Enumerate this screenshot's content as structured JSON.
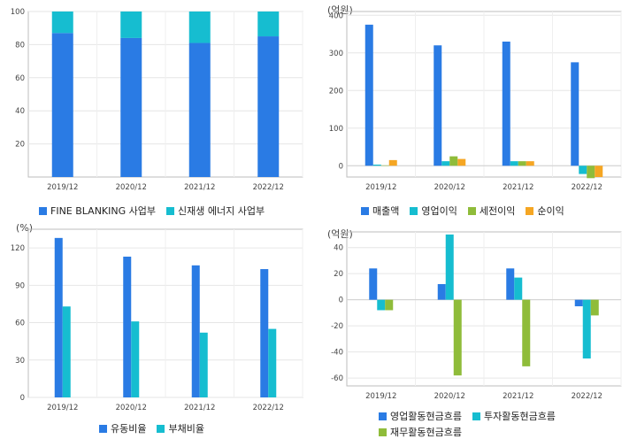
{
  "chart_data": [
    {
      "id": "c1",
      "type": "bar",
      "stacked": true,
      "unit_label": "",
      "categories": [
        "2019/12",
        "2020/12",
        "2021/12",
        "2022/12"
      ],
      "series": [
        {
          "name": "FINE BLANKING 사업부",
          "color": "#2a7be4",
          "values": [
            87,
            84,
            81,
            85
          ]
        },
        {
          "name": "신재생 에너지 사업부",
          "color": "#16bdd0",
          "values": [
            13,
            16,
            19,
            15
          ]
        }
      ],
      "ylim": [
        0,
        100
      ],
      "yticks": [
        20,
        40,
        60,
        80,
        100
      ],
      "grid": true,
      "legend": "bottom"
    },
    {
      "id": "c2",
      "type": "bar",
      "unit_label": "(억원)",
      "categories": [
        "2019/12",
        "2020/12",
        "2021/12",
        "2022/12"
      ],
      "series": [
        {
          "name": "매출액",
          "color": "#2a7be4",
          "values": [
            375,
            320,
            330,
            275
          ]
        },
        {
          "name": "영업이익",
          "color": "#16bdd0",
          "values": [
            3,
            12,
            12,
            -22
          ]
        },
        {
          "name": "세전이익",
          "color": "#8fbc3a",
          "values": [
            1,
            25,
            12,
            -33
          ]
        },
        {
          "name": "순이익",
          "color": "#f5a623",
          "values": [
            15,
            18,
            12,
            -30
          ]
        }
      ],
      "ylim": [
        -30,
        410
      ],
      "yticks": [
        0,
        100,
        200,
        300,
        400
      ],
      "grid": true,
      "legend": "bottom"
    },
    {
      "id": "c3",
      "type": "bar",
      "unit_label": "(%)",
      "categories": [
        "2019/12",
        "2020/12",
        "2021/12",
        "2022/12"
      ],
      "series": [
        {
          "name": "유동비율",
          "color": "#2a7be4",
          "values": [
            128,
            113,
            106,
            103
          ]
        },
        {
          "name": "부채비율",
          "color": "#16bdd0",
          "values": [
            73,
            61,
            52,
            55
          ]
        }
      ],
      "ylim": [
        0,
        135
      ],
      "yticks": [
        0,
        30,
        60,
        90,
        120
      ],
      "grid": true,
      "legend": "bottom"
    },
    {
      "id": "c4",
      "type": "bar",
      "unit_label": "(억원)",
      "categories": [
        "2019/12",
        "2020/12",
        "2021/12",
        "2022/12"
      ],
      "series": [
        {
          "name": "영업활동현금흐름",
          "color": "#2a7be4",
          "values": [
            24,
            12,
            24,
            -5
          ]
        },
        {
          "name": "투자활동현금흐름",
          "color": "#16bdd0",
          "values": [
            -8,
            50,
            17,
            -45
          ]
        },
        {
          "name": "재무활동현금흐름",
          "color": "#8fbc3a",
          "values": [
            -8,
            -58,
            -51,
            -12
          ]
        }
      ],
      "ylim": [
        -66,
        52
      ],
      "yticks": [
        -60,
        -40,
        -20,
        0,
        20,
        40
      ],
      "grid": true,
      "legend": "bottom"
    }
  ]
}
